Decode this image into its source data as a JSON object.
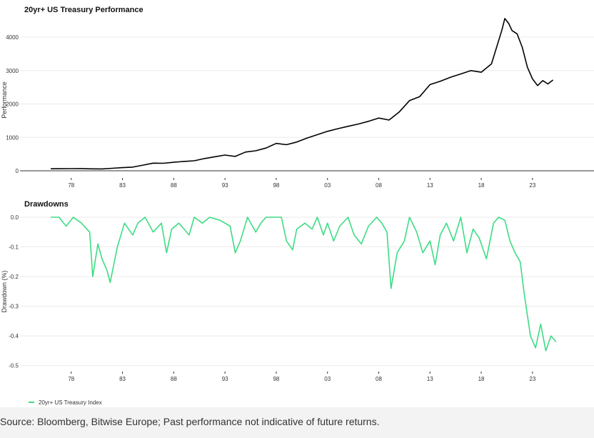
{
  "colors": {
    "performance_line": "#000000",
    "drawdown_line": "#3ddc84",
    "grid": "#ebebeb",
    "axis": "#333333"
  },
  "source": "Source: Bloomberg, Bitwise Europe; Past performance not indicative of future returns.",
  "chart_data": [
    {
      "type": "line",
      "title": "20yr+ US Treasury Performance",
      "xlabel": "",
      "ylabel": "Performance",
      "x_tick_labels": [
        "78",
        "83",
        "88",
        "93",
        "98",
        "03",
        "08",
        "13",
        "18",
        "23"
      ],
      "y_ticks": [
        0,
        1000,
        2000,
        3000,
        4000
      ],
      "xlim": [
        1973,
        2029
      ],
      "ylim": [
        0,
        4600
      ],
      "grid": true,
      "series": [
        {
          "name": "20yr+ US Treasury Index",
          "x": [
            1976,
            1977,
            1978,
            1979,
            1980,
            1981,
            1982,
            1983,
            1984,
            1985,
            1986,
            1987,
            1988,
            1989,
            1990,
            1991,
            1992,
            1993,
            1994,
            1995,
            1996,
            1997,
            1998,
            1999,
            2000,
            2001,
            2002,
            2003,
            2004,
            2005,
            2006,
            2007,
            2008,
            2009,
            2010,
            2011,
            2012,
            2013,
            2014,
            2015,
            2016,
            2017,
            2018,
            2019,
            2019.5,
            2020,
            2020.3,
            2020.7,
            2021,
            2021.5,
            2022,
            2022.5,
            2023,
            2023.5,
            2024,
            2024.5,
            2025
          ],
          "values": [
            60,
            62,
            65,
            67,
            58,
            55,
            75,
            95,
            110,
            170,
            230,
            225,
            255,
            280,
            300,
            365,
            420,
            470,
            430,
            560,
            600,
            680,
            820,
            780,
            860,
            980,
            1080,
            1180,
            1260,
            1330,
            1400,
            1480,
            1580,
            1520,
            1760,
            2100,
            2220,
            2580,
            2680,
            2800,
            2900,
            3000,
            2950,
            3200,
            3700,
            4200,
            4560,
            4400,
            4200,
            4100,
            3700,
            3100,
            2750,
            2550,
            2700,
            2600,
            2720
          ]
        }
      ]
    },
    {
      "type": "line",
      "title": "Drawdowns",
      "xlabel": "",
      "ylabel": "Drawdown (%)",
      "x_tick_labels": [
        "78",
        "83",
        "88",
        "93",
        "98",
        "03",
        "08",
        "13",
        "18",
        "23"
      ],
      "y_ticks": [
        0.0,
        -0.1,
        -0.2,
        -0.3,
        -0.4,
        -0.5
      ],
      "xlim": [
        1973,
        2029
      ],
      "ylim": [
        -0.52,
        0.0
      ],
      "grid": true,
      "legend": {
        "position": "bottom-left",
        "entries": [
          "20yr+ US Treasury Index"
        ]
      },
      "series": [
        {
          "name": "20yr+ US Treasury Index",
          "x": [
            1976,
            1976.8,
            1977.5,
            1978.2,
            1979,
            1979.8,
            1980.1,
            1980.6,
            1981,
            1981.5,
            1981.8,
            1982.5,
            1983.2,
            1984,
            1984.5,
            1985.2,
            1986,
            1986.8,
            1987.3,
            1987.8,
            1988.5,
            1989.5,
            1990,
            1990.8,
            1991.5,
            1992.5,
            1993.5,
            1994,
            1994.5,
            1995.2,
            1996,
            1996.5,
            1997,
            1997.8,
            1998.5,
            1999,
            1999.6,
            2000,
            2000.8,
            2001.5,
            2002,
            2002.6,
            2003,
            2003.6,
            2004.2,
            2005,
            2005.6,
            2006.3,
            2007,
            2007.8,
            2008.3,
            2008.8,
            2009.2,
            2009.8,
            2010.5,
            2011,
            2011.7,
            2012.3,
            2013,
            2013.5,
            2014,
            2014.6,
            2015.3,
            2016,
            2016.6,
            2017.2,
            2017.8,
            2018.5,
            2019.2,
            2019.7,
            2020.3,
            2020.8,
            2021.3,
            2021.8,
            2022.2,
            2022.5,
            2022.8,
            2023.3,
            2023.8,
            2024.3,
            2024.8,
            2025.3
          ],
          "values": [
            0.0,
            0.0,
            -0.03,
            0.0,
            -0.02,
            -0.05,
            -0.2,
            -0.09,
            -0.14,
            -0.18,
            -0.22,
            -0.1,
            -0.02,
            -0.06,
            -0.02,
            0.0,
            -0.05,
            -0.02,
            -0.12,
            -0.04,
            -0.02,
            -0.06,
            0.0,
            -0.02,
            0.0,
            -0.01,
            -0.03,
            -0.12,
            -0.08,
            0.0,
            -0.05,
            -0.02,
            0.0,
            0.0,
            0.0,
            -0.08,
            -0.11,
            -0.04,
            -0.02,
            -0.04,
            0.0,
            -0.06,
            -0.02,
            -0.08,
            -0.03,
            0.0,
            -0.06,
            -0.09,
            -0.03,
            0.0,
            -0.02,
            -0.05,
            -0.24,
            -0.12,
            -0.08,
            0.0,
            -0.05,
            -0.12,
            -0.08,
            -0.16,
            -0.06,
            -0.02,
            -0.08,
            0.0,
            -0.12,
            -0.04,
            -0.07,
            -0.14,
            -0.02,
            0.0,
            -0.01,
            -0.08,
            -0.12,
            -0.15,
            -0.26,
            -0.33,
            -0.4,
            -0.44,
            -0.36,
            -0.45,
            -0.4,
            -0.42
          ]
        }
      ]
    }
  ]
}
